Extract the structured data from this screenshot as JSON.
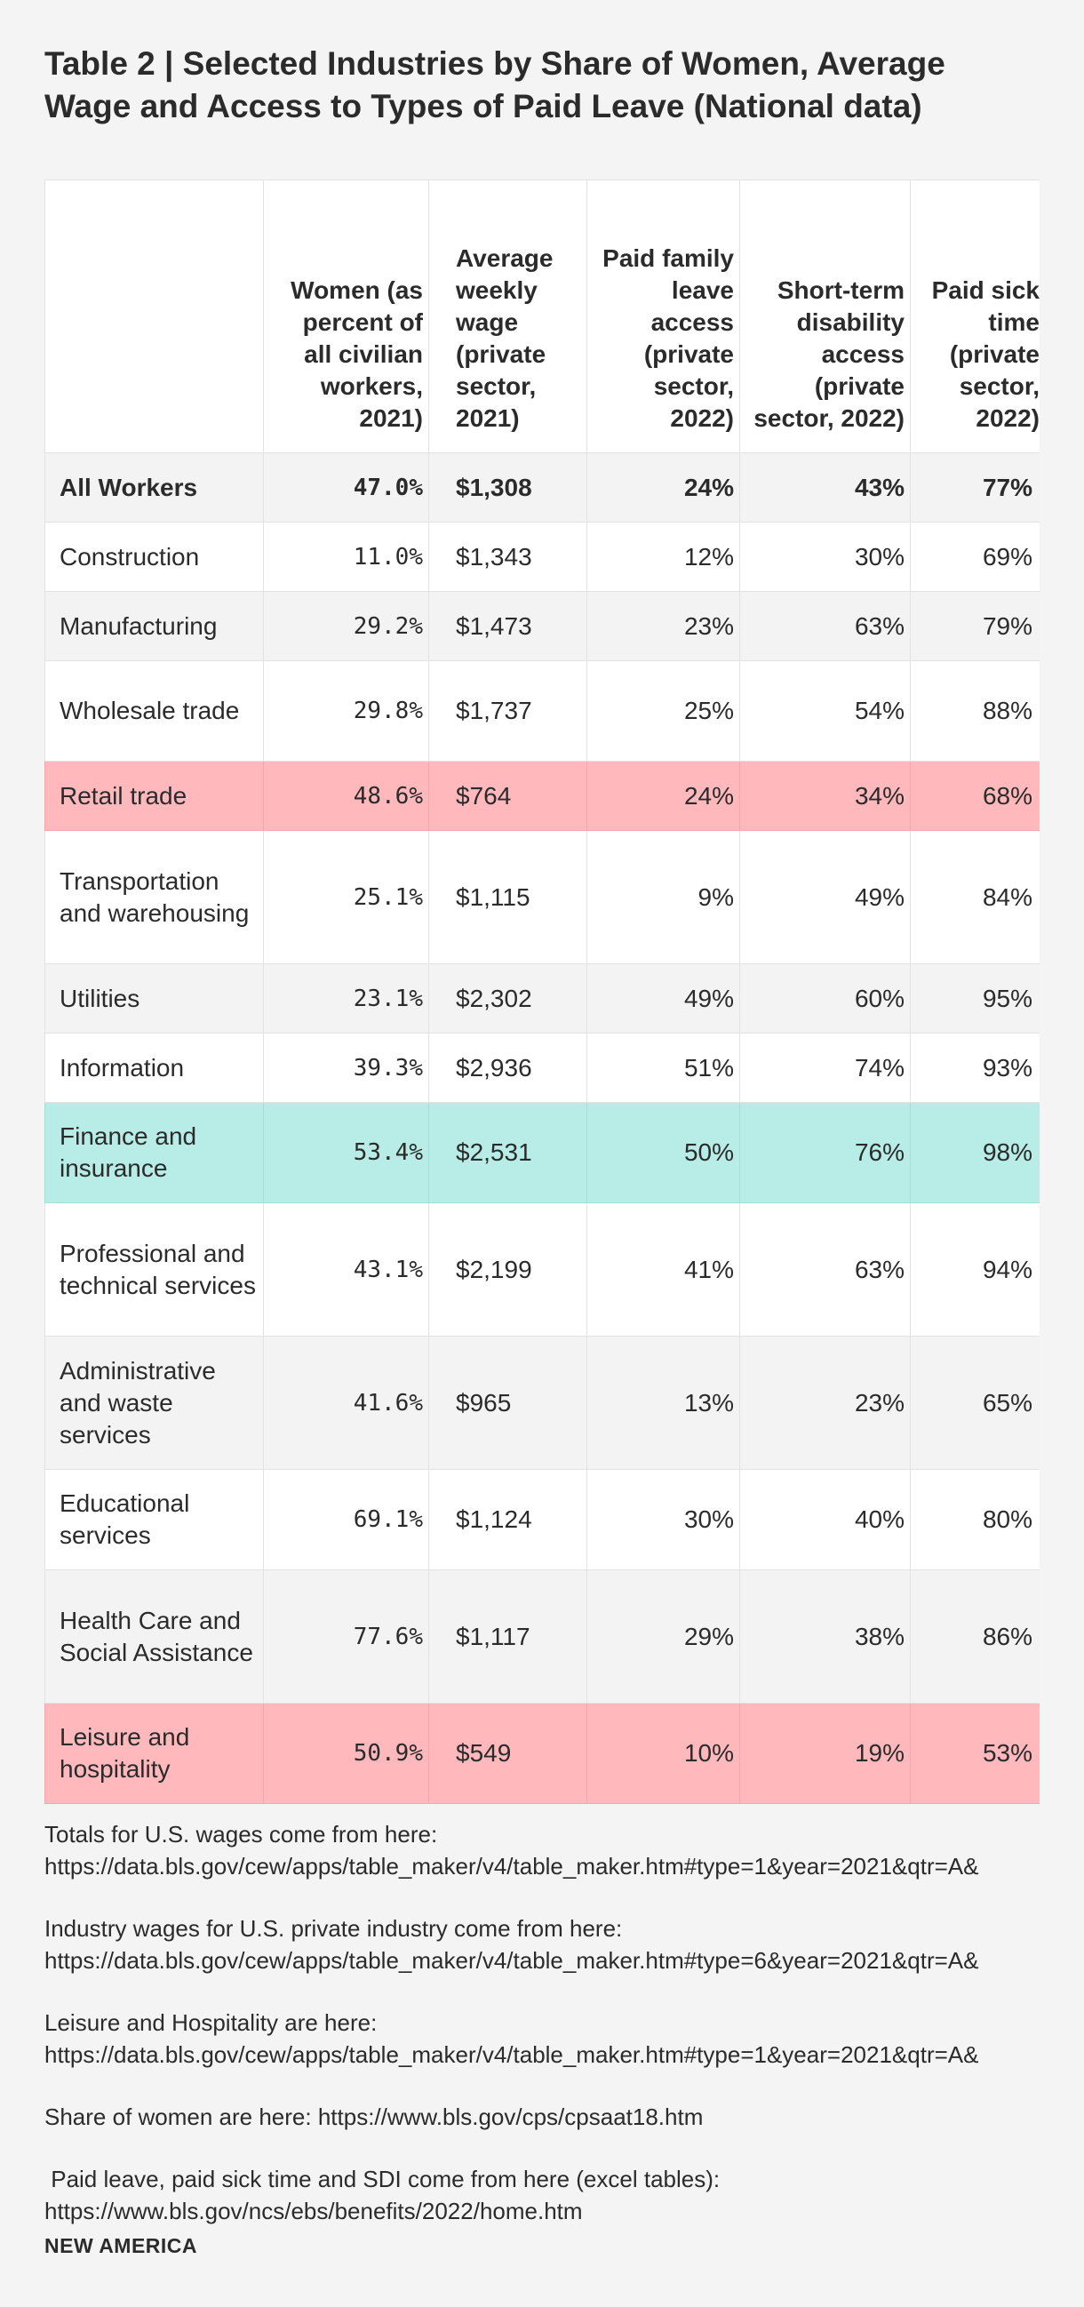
{
  "title": "Table 2 | Selected Industries by Share of Women, Average Wage and Access to Types of Paid Leave (National data)",
  "table": {
    "headers": [
      "",
      "Women (as percent of all civilian workers, 2021)",
      "Average weekly wage (private sector, 2021)",
      "Paid family leave access (private sector, 2022)",
      "Short-term disability access (private sector, 2022)",
      "Paid sick time (private sector, 2022)"
    ],
    "rows": [
      {
        "industry": "All Workers",
        "women": "47.0%",
        "wage": "$1,308",
        "family_leave": "24%",
        "disability": "43%",
        "sick": "77%"
      },
      {
        "industry": "Construction",
        "women": "11.0%",
        "wage": "$1,343",
        "family_leave": "12%",
        "disability": "30%",
        "sick": "69%"
      },
      {
        "industry": "Manufacturing",
        "women": "29.2%",
        "wage": "$1,473",
        "family_leave": "23%",
        "disability": "63%",
        "sick": "79%"
      },
      {
        "industry": "Wholesale trade",
        "women": "29.8%",
        "wage": "$1,737",
        "family_leave": "25%",
        "disability": "54%",
        "sick": "88%"
      },
      {
        "industry": "Retail trade",
        "women": "48.6%",
        "wage": "$764",
        "family_leave": "24%",
        "disability": "34%",
        "sick": "68%"
      },
      {
        "industry": "Transportation and warehousing",
        "women": "25.1%",
        "wage": "$1,115",
        "family_leave": "9%",
        "disability": "49%",
        "sick": "84%"
      },
      {
        "industry": "Utilities",
        "women": "23.1%",
        "wage": "$2,302",
        "family_leave": "49%",
        "disability": "60%",
        "sick": "95%"
      },
      {
        "industry": "Information",
        "women": "39.3%",
        "wage": "$2,936",
        "family_leave": "51%",
        "disability": "74%",
        "sick": "93%"
      },
      {
        "industry": "Finance and insurance",
        "women": "53.4%",
        "wage": "$2,531",
        "family_leave": "50%",
        "disability": "76%",
        "sick": "98%"
      },
      {
        "industry": "Professional and technical services",
        "women": "43.1%",
        "wage": "$2,199",
        "family_leave": "41%",
        "disability": "63%",
        "sick": "94%"
      },
      {
        "industry": "Administrative and waste services",
        "women": "41.6%",
        "wage": "$965",
        "family_leave": "13%",
        "disability": "23%",
        "sick": "65%"
      },
      {
        "industry": "Educational services",
        "women": "69.1%",
        "wage": "$1,124",
        "family_leave": "30%",
        "disability": "40%",
        "sick": "80%"
      },
      {
        "industry": "Health Care and Social Assistance",
        "women": "77.6%",
        "wage": "$1,117",
        "family_leave": "29%",
        "disability": "38%",
        "sick": "86%"
      },
      {
        "industry": "Leisure and hospitality",
        "women": "50.9%",
        "wage": "$549",
        "family_leave": "10%",
        "disability": "19%",
        "sick": "53%"
      }
    ]
  },
  "notes": [
    {
      "text": "Totals for U.S. wages come from here:",
      "url": "https://data.bls.gov/cew/apps/table_maker/v4/table_maker.htm#type=1&year=2021&qtr=A&"
    },
    {
      "text": "Industry wages for U.S. private industry come from here:",
      "url": "https://data.bls.gov/cew/apps/table_maker/v4/table_maker.htm#type=6&year=2021&qtr=A&"
    },
    {
      "text": "Leisure and Hospitality are here:",
      "url": "https://data.bls.gov/cew/apps/table_maker/v4/table_maker.htm#type=1&year=2021&qtr=A&"
    },
    {
      "text": "Share of women are here: https://www.bls.gov/cps/cpsaat18.htm",
      "url": ""
    },
    {
      "text": " Paid leave, paid sick time and SDI come from here (excel tables):",
      "url": "https://www.bls.gov/ncs/ebs/benefits/2022/home.htm"
    }
  ],
  "brand": "NEW AMERICA",
  "colors": {
    "background": "#f4f4f4",
    "highlight_low": "#ffb9bd",
    "highlight_high": "#b8ece6"
  }
}
